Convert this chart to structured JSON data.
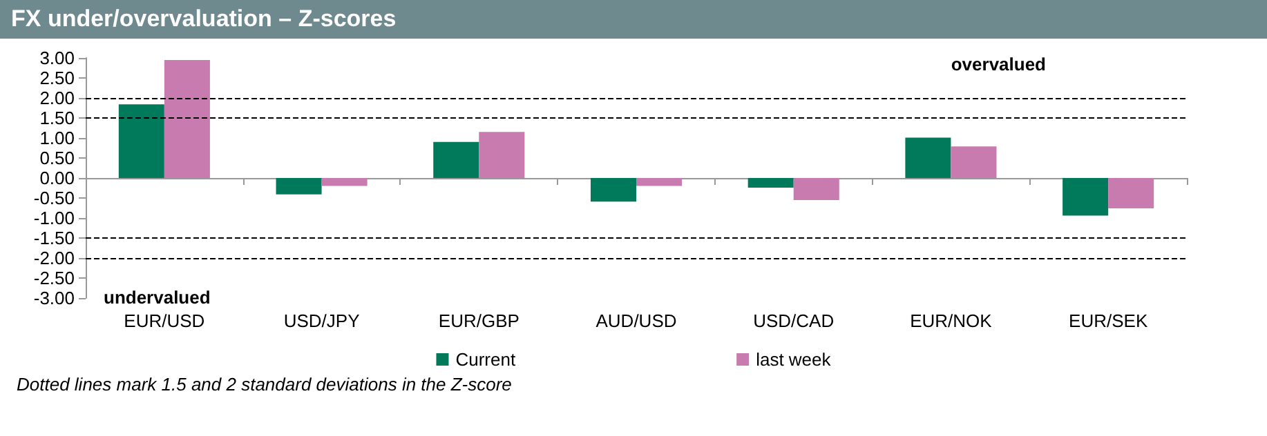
{
  "chart_data": {
    "type": "bar",
    "title": "FX under/overvaluation – Z-scores",
    "categories": [
      "EUR/USD",
      "USD/JPY",
      "EUR/GBP",
      "AUD/USD",
      "USD/CAD",
      "EUR/NOK",
      "EUR/SEK"
    ],
    "series": [
      {
        "name": "Current",
        "color": "#007a5a",
        "values": [
          1.84,
          -0.41,
          0.9,
          -0.59,
          -0.24,
          1.01,
          -0.94
        ]
      },
      {
        "name": "last week",
        "color": "#c77bae",
        "values": [
          2.95,
          -0.2,
          1.15,
          -0.2,
          -0.55,
          0.79,
          -0.76
        ]
      }
    ],
    "ylim": [
      -3,
      3
    ],
    "yticks": [
      {
        "value": -3,
        "label": "-3.00"
      },
      {
        "value": -2.5,
        "label": "-2.50"
      },
      {
        "value": -2,
        "label": "-2.00"
      },
      {
        "value": -1.5,
        "label": "-1.50"
      },
      {
        "value": -1,
        "label": "-1.00"
      },
      {
        "value": -0.5,
        "label": "-0.50"
      },
      {
        "value": 0,
        "label": "0.00"
      },
      {
        "value": 0.5,
        "label": "0.50"
      },
      {
        "value": 1,
        "label": "1.00"
      },
      {
        "value": 1.5,
        "label": "1.50"
      },
      {
        "value": 2,
        "label": "2.00"
      },
      {
        "value": 2.5,
        "label": "2.50"
      },
      {
        "value": 3,
        "label": "3.00"
      }
    ],
    "ref_lines": [
      {
        "axis": "y",
        "value": 2,
        "line_style": "dashed"
      },
      {
        "axis": "y",
        "value": 1.5,
        "line_style": "dashed"
      },
      {
        "axis": "y",
        "value": -1.5,
        "line_style": "dashed"
      },
      {
        "axis": "y",
        "value": -2,
        "line_style": "dashed"
      }
    ],
    "annotations": [
      "overvalued",
      "undervalued",
      "Dotted lines mark 1.5 and 2 standard deviations in the Z-score"
    ],
    "grid": false,
    "legend": "bottom"
  }
}
